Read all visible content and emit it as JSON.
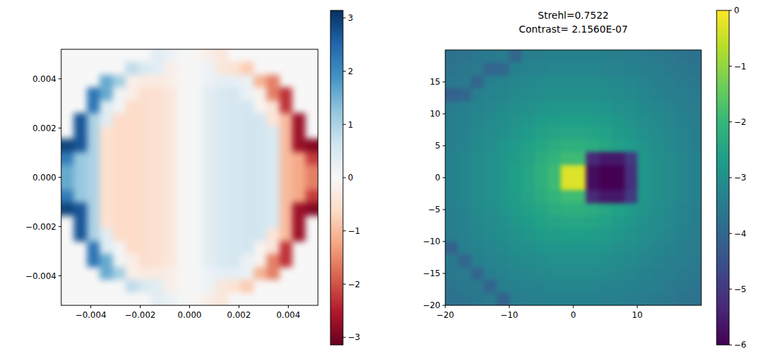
{
  "chart_data": [
    {
      "type": "heatmap",
      "color": "RdBu",
      "xlim": [
        -0.0052,
        0.0052
      ],
      "ylim": [
        -0.0052,
        0.0052
      ],
      "xticks": [
        {
          "value": -0.004,
          "label": "−0.004"
        },
        {
          "value": -0.002,
          "label": "−0.002"
        },
        {
          "value": 0,
          "label": "0.000"
        },
        {
          "value": 0.002,
          "label": "0.002"
        },
        {
          "value": 0.004,
          "label": "0.004"
        }
      ],
      "yticks": [
        {
          "value": -0.004,
          "label": "−0.004"
        },
        {
          "value": -0.002,
          "label": "−0.002"
        },
        {
          "value": 0,
          "label": "0.000"
        },
        {
          "value": 0.002,
          "label": "0.002"
        },
        {
          "value": 0.004,
          "label": "0.004"
        }
      ],
      "colorbar": {
        "range": [
          -3.1416,
          3.1416
        ],
        "ticks": [
          {
            "value": -3,
            "label": "−3"
          },
          {
            "value": -2,
            "label": "−2"
          },
          {
            "value": -1,
            "label": "−1"
          },
          0,
          1,
          2,
          3
        ]
      },
      "cells": [
        [
          0,
          0,
          0,
          0,
          0,
          0,
          0,
          0.35,
          0.2,
          0.05,
          -0.05,
          -0.2,
          -0.35,
          0,
          0,
          0,
          0,
          0,
          0,
          0
        ],
        [
          0,
          0,
          0,
          0,
          0,
          0.8,
          0.5,
          0.35,
          -0.2,
          -0.05,
          0.05,
          0.2,
          -0.35,
          -0.5,
          -0.8,
          0,
          0,
          0,
          0,
          0
        ],
        [
          0,
          0,
          0,
          1.6,
          1.1,
          -0.2,
          -0.3,
          -0.3,
          -0.2,
          -0.05,
          0.05,
          0.2,
          0.3,
          0.3,
          0.2,
          -1.1,
          -1.6,
          0,
          0,
          0
        ],
        [
          0,
          0,
          2.3,
          1.6,
          0.1,
          -0.2,
          -0.55,
          -0.5,
          -0.35,
          -0.05,
          0.05,
          0.35,
          0.5,
          0.55,
          0.2,
          -0.1,
          -1.6,
          -2.3,
          0,
          0
        ],
        [
          0,
          0,
          2.3,
          0.4,
          0.1,
          -0.6,
          -0.55,
          -0.5,
          -0.35,
          -0.05,
          0.05,
          0.35,
          0.5,
          0.55,
          0.6,
          -0.1,
          -0.4,
          -2.3,
          0,
          0
        ],
        [
          0,
          2.7,
          1.0,
          0.4,
          -0.6,
          -0.6,
          -0.55,
          -0.5,
          -0.35,
          -0.05,
          0.05,
          0.35,
          0.5,
          0.55,
          0.6,
          0.6,
          -0.4,
          -1.0,
          -2.7,
          0
        ],
        [
          0,
          2.7,
          1.0,
          -0.5,
          -0.6,
          -0.6,
          -0.55,
          -0.5,
          -0.35,
          -0.05,
          0.05,
          0.35,
          0.5,
          0.55,
          0.6,
          0.6,
          0.5,
          -1.0,
          -2.7,
          0
        ],
        [
          2.9,
          2.7,
          1.0,
          -0.5,
          -0.6,
          -0.6,
          -0.55,
          -0.5,
          -0.35,
          -0.05,
          0.05,
          0.35,
          0.5,
          0.55,
          0.6,
          0.6,
          0.5,
          -1.0,
          -2.7,
          -2.9
        ],
        [
          2.2,
          1.2,
          1.0,
          -0.5,
          -0.6,
          -0.6,
          -0.55,
          -0.5,
          -0.35,
          -0.05,
          0.05,
          0.35,
          0.5,
          0.55,
          0.6,
          0.6,
          0.5,
          -1.0,
          -1.2,
          -2.2
        ],
        [
          1.6,
          1.2,
          1.0,
          -0.5,
          -0.6,
          -0.6,
          -0.55,
          -0.5,
          -0.35,
          -0.05,
          0.05,
          0.35,
          0.5,
          0.55,
          0.6,
          0.6,
          0.5,
          -1.0,
          -1.2,
          -1.6
        ],
        [
          1.6,
          1.2,
          1.0,
          -0.5,
          -0.6,
          -0.6,
          -0.55,
          -0.5,
          -0.35,
          -0.05,
          0.05,
          0.35,
          0.5,
          0.55,
          0.6,
          0.6,
          0.5,
          -1.0,
          -1.2,
          -1.6
        ],
        [
          2.2,
          1.2,
          1.0,
          -0.5,
          -0.6,
          -0.6,
          -0.55,
          -0.5,
          -0.35,
          -0.05,
          0.05,
          0.35,
          0.5,
          0.55,
          0.6,
          0.6,
          0.5,
          -1.0,
          -1.2,
          -2.2
        ],
        [
          2.9,
          2.7,
          1.0,
          -0.5,
          -0.6,
          -0.6,
          -0.55,
          -0.5,
          -0.35,
          -0.05,
          0.05,
          0.35,
          0.5,
          0.55,
          0.6,
          0.6,
          0.5,
          -1.0,
          -2.7,
          -2.9
        ],
        [
          0,
          2.7,
          1.0,
          -0.5,
          -0.6,
          -0.6,
          -0.55,
          -0.5,
          -0.35,
          -0.05,
          0.05,
          0.35,
          0.5,
          0.55,
          0.6,
          0.6,
          0.5,
          -1.0,
          -2.7,
          0
        ],
        [
          0,
          2.7,
          1.0,
          0.4,
          -0.6,
          -0.6,
          -0.55,
          -0.5,
          -0.35,
          -0.05,
          0.05,
          0.35,
          0.5,
          0.55,
          0.6,
          0.6,
          -0.4,
          -1.0,
          -2.7,
          0
        ],
        [
          0,
          0,
          2.3,
          0.4,
          0.1,
          -0.6,
          -0.55,
          -0.5,
          -0.35,
          -0.05,
          0.05,
          0.35,
          0.5,
          0.55,
          0.6,
          -0.1,
          -0.4,
          -2.3,
          0,
          0
        ],
        [
          0,
          0,
          2.3,
          1.6,
          0.1,
          -0.2,
          -0.55,
          -0.5,
          -0.35,
          -0.05,
          0.05,
          0.35,
          0.5,
          0.55,
          0.2,
          -0.1,
          -1.6,
          -2.3,
          0,
          0
        ],
        [
          0,
          0,
          0,
          1.6,
          1.1,
          -0.2,
          -0.3,
          -0.3,
          -0.2,
          -0.05,
          0.05,
          0.2,
          0.3,
          0.3,
          0.2,
          -1.1,
          -1.6,
          0,
          0,
          0
        ],
        [
          0,
          0,
          0,
          0,
          0,
          0.8,
          0.5,
          0.35,
          -0.2,
          -0.05,
          0.05,
          0.2,
          -0.35,
          -0.5,
          -0.8,
          0,
          0,
          0,
          0,
          0
        ],
        [
          0,
          0,
          0,
          0,
          0,
          0,
          0,
          0.35,
          0.2,
          0.05,
          -0.05,
          -0.2,
          -0.35,
          0,
          0,
          0,
          0,
          0,
          0,
          0
        ]
      ]
    },
    {
      "type": "heatmap",
      "color": "viridis",
      "title": "Strehl=0.7522",
      "subtitle": "Contrast= 2.1560E-07",
      "xlim": [
        -20,
        20
      ],
      "ylim": [
        -20,
        20
      ],
      "xticks": [
        {
          "value": -20,
          "label": "−20"
        },
        {
          "value": -10,
          "label": "−10"
        },
        0,
        10
      ],
      "yticks": [
        {
          "value": -20,
          "label": "−20"
        },
        {
          "value": -15,
          "label": "−15"
        },
        {
          "value": -10,
          "label": "−10"
        },
        {
          "value": -5,
          "label": "−5"
        },
        0,
        5,
        10,
        15
      ],
      "colorbar": {
        "range": [
          -6,
          0
        ],
        "ticks": [
          0,
          {
            "value": -1,
            "label": "−1"
          },
          {
            "value": -2,
            "label": "−2"
          },
          {
            "value": -3,
            "label": "−3"
          },
          {
            "value": -4,
            "label": "−4"
          },
          {
            "value": -5,
            "label": "−5"
          },
          {
            "value": -6,
            "label": "−6"
          }
        ]
      },
      "cells": [
        [
          -3.75,
          -3.7,
          -3.6,
          -3.55,
          -3.5,
          -4.05,
          -3.4,
          -3.4,
          -3.35,
          -3.35,
          -3.35,
          -3.35,
          -3.4,
          -3.4,
          -3.45,
          -3.5,
          -3.55,
          -3.6,
          -3.7,
          -3.75
        ],
        [
          -3.7,
          -3.6,
          -3.55,
          -4.05,
          -4.0,
          -3.35,
          -3.3,
          -3.3,
          -3.25,
          -3.25,
          -3.25,
          -3.25,
          -3.3,
          -3.3,
          -3.35,
          -3.4,
          -3.45,
          -3.55,
          -3.6,
          -3.7
        ],
        [
          -3.6,
          -3.55,
          -4.05,
          -3.4,
          -3.3,
          -3.25,
          -3.2,
          -3.15,
          -3.1,
          -3.1,
          -3.1,
          -3.1,
          -3.15,
          -3.2,
          -3.25,
          -3.3,
          -3.4,
          -3.45,
          -3.55,
          -3.6
        ],
        [
          -4.15,
          -4.05,
          -3.4,
          -3.3,
          -3.25,
          -3.15,
          -3.1,
          -3.05,
          -3.0,
          -3.0,
          -3.0,
          -3.0,
          -3.05,
          -3.1,
          -3.15,
          -3.25,
          -3.3,
          -3.4,
          -3.45,
          -3.55
        ],
        [
          -3.5,
          -3.4,
          -3.3,
          -3.25,
          -3.15,
          -3.05,
          -3.0,
          -2.9,
          -2.85,
          -2.85,
          -2.85,
          -2.85,
          -2.9,
          -3.0,
          -3.05,
          -3.15,
          -3.25,
          -3.3,
          -3.4,
          -3.5
        ],
        [
          -3.45,
          -3.35,
          -3.25,
          -3.15,
          -3.05,
          -2.95,
          -2.85,
          -2.75,
          -2.7,
          -2.65,
          -2.65,
          -2.7,
          -2.75,
          -2.85,
          -2.95,
          -3.05,
          -3.15,
          -3.25,
          -3.35,
          -3.45
        ],
        [
          -3.4,
          -3.3,
          -3.2,
          -3.1,
          -3.0,
          -2.85,
          -2.75,
          -2.6,
          -2.5,
          -2.45,
          -2.45,
          -2.5,
          -2.6,
          -2.75,
          -2.85,
          -3.0,
          -3.1,
          -3.2,
          -3.3,
          -3.4
        ],
        [
          -3.4,
          -3.3,
          -3.15,
          -3.05,
          -2.9,
          -2.75,
          -2.6,
          -2.45,
          -2.3,
          -2.2,
          -2.2,
          -2.3,
          -2.45,
          -2.6,
          -2.75,
          -2.9,
          -3.05,
          -3.15,
          -3.3,
          -3.4
        ],
        [
          -3.35,
          -3.25,
          -3.1,
          -3.0,
          -2.85,
          -2.7,
          -2.5,
          -2.3,
          -2.1,
          -1.9,
          -1.9,
          -5.3,
          -5.6,
          -5.6,
          -5.0,
          -2.85,
          -3.0,
          -3.1,
          -3.25,
          -3.35
        ],
        [
          -3.35,
          -3.25,
          -3.1,
          -3.0,
          -2.85,
          -2.65,
          -2.45,
          -2.2,
          -1.9,
          -0.3,
          -0.3,
          -5.8,
          -6,
          -6,
          -5.2,
          -2.85,
          -3.0,
          -3.1,
          -3.25,
          -3.35
        ],
        [
          -3.35,
          -3.25,
          -3.1,
          -3.0,
          -2.85,
          -2.65,
          -2.45,
          -2.2,
          -1.9,
          -0.3,
          -0.3,
          -5.8,
          -6,
          -6,
          -5.2,
          -2.85,
          -3.0,
          -3.1,
          -3.25,
          -3.35
        ],
        [
          -3.35,
          -3.25,
          -3.1,
          -3.0,
          -2.85,
          -2.7,
          -2.5,
          -2.3,
          -2.1,
          -1.9,
          -1.9,
          -5.3,
          -5.6,
          -5.6,
          -5.0,
          -2.85,
          -3.0,
          -3.1,
          -3.25,
          -3.35
        ],
        [
          -3.4,
          -3.3,
          -3.15,
          -3.05,
          -2.9,
          -2.75,
          -2.6,
          -2.45,
          -2.3,
          -2.2,
          -2.2,
          -2.3,
          -2.45,
          -2.6,
          -2.75,
          -2.9,
          -3.05,
          -3.15,
          -3.3,
          -3.4
        ],
        [
          -3.4,
          -3.3,
          -3.2,
          -3.1,
          -3.0,
          -2.85,
          -2.75,
          -2.6,
          -2.5,
          -2.45,
          -2.45,
          -2.5,
          -2.6,
          -2.75,
          -2.85,
          -3.0,
          -3.1,
          -3.2,
          -3.3,
          -3.4
        ],
        [
          -3.45,
          -3.35,
          -3.25,
          -3.15,
          -3.05,
          -2.95,
          -2.85,
          -2.75,
          -2.7,
          -2.65,
          -2.65,
          -2.7,
          -2.75,
          -2.85,
          -2.95,
          -3.05,
          -3.15,
          -3.25,
          -3.35,
          -3.45
        ],
        [
          -4.1,
          -3.4,
          -3.3,
          -3.25,
          -3.15,
          -3.05,
          -3.0,
          -2.9,
          -2.85,
          -2.85,
          -2.85,
          -2.85,
          -2.9,
          -3.0,
          -3.05,
          -3.15,
          -3.25,
          -3.3,
          -3.4,
          -3.5
        ],
        [
          -3.55,
          -4.05,
          -3.4,
          -3.3,
          -3.25,
          -3.15,
          -3.1,
          -3.05,
          -3.0,
          -3.0,
          -3.0,
          -3.0,
          -3.05,
          -3.1,
          -3.15,
          -3.25,
          -3.3,
          -3.4,
          -3.45,
          -3.55
        ],
        [
          -3.6,
          -3.55,
          -4.05,
          -3.4,
          -3.3,
          -3.25,
          -3.2,
          -3.15,
          -3.1,
          -3.1,
          -3.1,
          -3.1,
          -3.15,
          -3.2,
          -3.25,
          -3.3,
          -3.4,
          -3.45,
          -3.55,
          -3.6
        ],
        [
          -3.7,
          -3.6,
          -3.55,
          -4.05,
          -3.4,
          -3.35,
          -3.3,
          -3.3,
          -3.25,
          -3.25,
          -3.25,
          -3.25,
          -3.3,
          -3.3,
          -3.35,
          -3.4,
          -3.45,
          -3.55,
          -3.6,
          -3.7
        ],
        [
          -3.75,
          -3.7,
          -3.6,
          -3.55,
          -4.1,
          -3.45,
          -3.4,
          -3.4,
          -3.35,
          -3.35,
          -3.35,
          -3.35,
          -3.4,
          -3.4,
          -3.45,
          -3.5,
          -3.55,
          -3.6,
          -3.7,
          -3.75
        ]
      ]
    }
  ]
}
